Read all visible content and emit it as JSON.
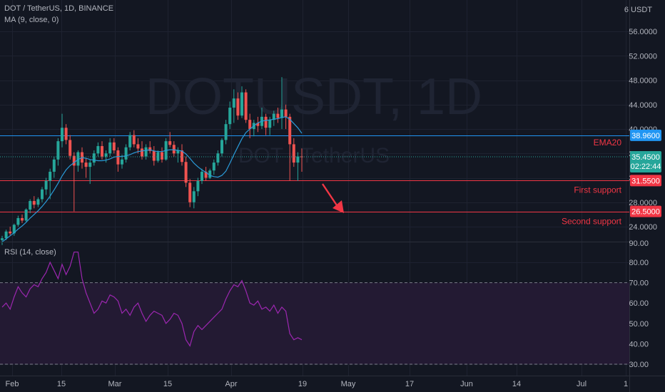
{
  "header": {
    "symbol_title": "DOT / TetherUS, 1D, BINANCE",
    "indicator_ma": "MA (9, close, 0)",
    "indicator_rsi": "RSI (14, close)"
  },
  "watermark": {
    "main": "DOTUSDT, 1D",
    "sub": "DOT / TetherUS"
  },
  "colors": {
    "background": "#131722",
    "grid": "#1e2230",
    "up": "#26a69a",
    "down": "#ef5350",
    "ma": "#2a9bd9",
    "rsi": "#9c27b0",
    "rsi_band": "#231a33",
    "hline_blue": "#2196f3",
    "hline_red": "#f23645"
  },
  "chart_data": [
    {
      "type": "candlestick",
      "title": "DOT / TetherUS, 1D, BINANCE",
      "unit": "USDT",
      "y_axis_labels": [
        "24.0000",
        "28.0000",
        "32.0000",
        "36.0000",
        "40.0000",
        "44.0000",
        "48.0000",
        "52.0000",
        "56.0000"
      ],
      "x_axis_labels": [
        "Feb",
        "15",
        "Mar",
        "15",
        "Apr",
        "19",
        "May",
        "17",
        "Jun",
        "14",
        "Jul",
        "1"
      ],
      "last_price": "35.4500",
      "countdown": "02:22:44",
      "currency_label": "6 USDT",
      "horizontal_lines": [
        {
          "price": 38.96,
          "label": "38.9600",
          "color": "#2196f3",
          "text": "EMA20"
        },
        {
          "price": 31.55,
          "label": "31.5500",
          "color": "#f23645",
          "text": "First support"
        },
        {
          "price": 26.5,
          "label": "26.5000",
          "color": "#f23645",
          "text": "Second support"
        }
      ],
      "candles": [
        [
          21.8,
          22.5,
          21.0,
          22.1
        ],
        [
          22.1,
          23.5,
          21.8,
          23.2
        ],
        [
          23.2,
          24.0,
          22.6,
          22.9
        ],
        [
          22.9,
          24.5,
          22.5,
          24.3
        ],
        [
          24.3,
          25.8,
          24.0,
          25.4
        ],
        [
          25.4,
          26.0,
          24.6,
          25.0
        ],
        [
          25.0,
          27.0,
          24.8,
          26.8
        ],
        [
          26.8,
          28.5,
          26.2,
          28.2
        ],
        [
          28.2,
          29.0,
          27.0,
          27.6
        ],
        [
          27.6,
          28.8,
          27.2,
          28.5
        ],
        [
          28.5,
          30.5,
          28.0,
          30.1
        ],
        [
          30.1,
          32.0,
          29.2,
          31.5
        ],
        [
          31.5,
          33.5,
          28.5,
          33.0
        ],
        [
          33.0,
          35.5,
          32.0,
          35.0
        ],
        [
          35.0,
          38.5,
          34.0,
          38.0
        ],
        [
          38.0,
          42.5,
          37.0,
          40.2
        ],
        [
          40.2,
          40.8,
          37.5,
          38.2
        ],
        [
          38.2,
          39.0,
          35.0,
          35.6
        ],
        [
          35.6,
          36.2,
          26.5,
          34.0
        ],
        [
          34.0,
          36.5,
          33.0,
          36.2
        ],
        [
          36.2,
          37.0,
          33.5,
          34.5
        ],
        [
          34.5,
          35.2,
          32.0,
          33.8
        ],
        [
          33.8,
          35.0,
          31.0,
          34.5
        ],
        [
          34.5,
          36.5,
          34.0,
          36.0
        ],
        [
          36.0,
          37.8,
          35.5,
          37.2
        ],
        [
          37.2,
          38.0,
          35.0,
          35.5
        ],
        [
          35.5,
          36.5,
          34.5,
          36.0
        ],
        [
          36.0,
          38.5,
          35.5,
          37.8
        ],
        [
          37.8,
          38.5,
          36.0,
          36.5
        ],
        [
          36.5,
          37.0,
          33.0,
          34.2
        ],
        [
          34.2,
          35.8,
          33.5,
          35.0
        ],
        [
          35.0,
          37.5,
          34.5,
          37.0
        ],
        [
          37.0,
          39.5,
          36.5,
          39.0
        ],
        [
          39.0,
          39.8,
          37.0,
          37.5
        ],
        [
          37.5,
          38.5,
          36.0,
          36.8
        ],
        [
          36.8,
          38.0,
          35.0,
          35.5
        ],
        [
          35.5,
          37.5,
          35.0,
          37.0
        ],
        [
          37.0,
          38.0,
          36.0,
          36.4
        ],
        [
          36.4,
          37.2,
          34.0,
          34.8
        ],
        [
          34.8,
          36.5,
          34.5,
          36.2
        ],
        [
          36.2,
          37.0,
          34.5,
          35.0
        ],
        [
          35.0,
          38.5,
          34.8,
          38.0
        ],
        [
          38.0,
          39.5,
          37.0,
          37.4
        ],
        [
          37.4,
          38.0,
          35.5,
          36.0
        ],
        [
          36.0,
          37.0,
          34.5,
          36.5
        ],
        [
          36.5,
          37.5,
          34.0,
          34.6
        ],
        [
          34.6,
          35.5,
          30.5,
          31.2
        ],
        [
          31.2,
          31.8,
          27.2,
          28.0
        ],
        [
          28.0,
          30.5,
          27.0,
          29.8
        ],
        [
          29.8,
          32.0,
          29.0,
          31.5
        ],
        [
          31.5,
          33.5,
          31.0,
          33.0
        ],
        [
          33.0,
          33.8,
          31.5,
          32.0
        ],
        [
          32.0,
          33.5,
          31.8,
          33.2
        ],
        [
          33.2,
          35.0,
          32.5,
          34.5
        ],
        [
          34.5,
          36.5,
          34.0,
          36.0
        ],
        [
          36.0,
          38.5,
          35.5,
          38.2
        ],
        [
          38.2,
          41.5,
          37.5,
          40.8
        ],
        [
          40.8,
          44.5,
          40.0,
          43.5
        ],
        [
          43.5,
          46.5,
          41.0,
          45.0
        ],
        [
          45.0,
          46.0,
          41.5,
          42.2
        ],
        [
          42.2,
          47.0,
          41.8,
          46.0
        ],
        [
          46.0,
          46.5,
          41.0,
          41.5
        ],
        [
          41.5,
          42.5,
          38.5,
          40.0
        ],
        [
          40.0,
          41.5,
          38.8,
          41.0
        ],
        [
          41.0,
          42.0,
          39.5,
          40.5
        ],
        [
          40.5,
          43.5,
          40.0,
          42.0
        ],
        [
          42.0,
          42.5,
          39.0,
          40.2
        ],
        [
          40.2,
          42.0,
          39.0,
          41.5
        ],
        [
          41.5,
          43.0,
          40.5,
          42.5
        ],
        [
          42.5,
          43.5,
          41.0,
          41.8
        ],
        [
          41.8,
          48.5,
          40.0,
          43.2
        ],
        [
          43.2,
          44.0,
          40.0,
          42.0
        ],
        [
          42.0,
          42.5,
          31.5,
          37.5
        ],
        [
          37.5,
          38.5,
          33.8,
          34.5
        ],
        [
          34.5,
          36.2,
          31.5,
          35.5
        ],
        [
          35.5,
          36.8,
          33.0,
          35.45
        ]
      ],
      "ma9": [
        21.5,
        22.0,
        22.5,
        23.0,
        23.6,
        24.1,
        24.7,
        25.4,
        26.0,
        26.6,
        27.3,
        28.1,
        29.0,
        30.0,
        31.1,
        32.3,
        33.3,
        34.0,
        34.5,
        35.0,
        35.3,
        35.2,
        35.0,
        34.9,
        34.8,
        34.8,
        34.9,
        35.1,
        35.4,
        35.5,
        35.5,
        35.6,
        35.8,
        36.1,
        36.3,
        36.4,
        36.5,
        36.6,
        36.4,
        36.3,
        36.3,
        36.5,
        36.6,
        36.6,
        36.5,
        36.4,
        35.9,
        35.2,
        34.4,
        33.8,
        33.3,
        32.9,
        32.4,
        32.2,
        32.1,
        32.4,
        33.1,
        34.4,
        35.8,
        37.1,
        38.4,
        39.4,
        40.0,
        40.5,
        41.0,
        41.3,
        41.4,
        41.5,
        41.6,
        41.7,
        41.9,
        42.0,
        41.6,
        40.9,
        40.2,
        39.3
      ]
    },
    {
      "type": "line",
      "title": "RSI (14, close)",
      "y_axis_labels": [
        "30.00",
        "40.00",
        "50.00",
        "60.00",
        "70.00",
        "80.00",
        "90.00"
      ],
      "bands": [
        70,
        30
      ],
      "values": [
        58,
        60,
        57,
        63,
        68,
        65,
        63,
        67,
        69,
        68,
        72,
        75,
        80,
        76,
        72,
        79,
        74,
        78,
        85,
        85,
        72,
        65,
        60,
        55,
        57,
        61,
        60,
        64,
        63,
        61,
        55,
        57,
        54,
        58,
        60,
        55,
        51,
        54,
        56,
        55,
        54,
        50,
        52,
        55,
        54,
        50,
        42,
        39,
        46,
        49,
        47,
        49,
        51,
        53,
        55,
        57,
        62,
        66,
        69,
        68,
        71,
        66,
        60,
        59,
        61,
        57,
        58,
        56,
        59,
        55,
        58,
        56,
        45,
        42,
        43,
        42
      ]
    }
  ]
}
